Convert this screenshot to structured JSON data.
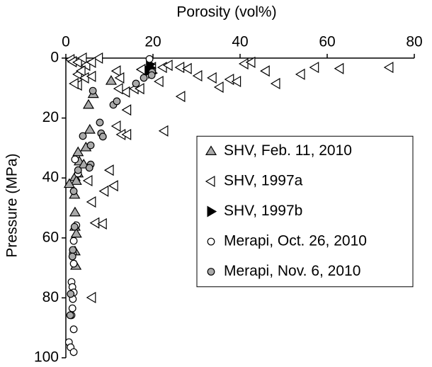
{
  "chart_data": {
    "type": "scatter",
    "xlabel": "Porosity (vol%)",
    "ylabel": "Pressure (MPa)",
    "xlim": [
      0,
      80
    ],
    "xticks": [
      0,
      20,
      40,
      60,
      80
    ],
    "ylim": [
      0,
      100
    ],
    "yticks": [
      0,
      20,
      40,
      60,
      80,
      100
    ],
    "x_axis_position": "top",
    "y_inverted": true,
    "legend": "center right",
    "grid": false,
    "series": [
      {
        "name": "SHV, Feb. 11, 2010",
        "color": "#a9a9a9",
        "marker": "triangle-up",
        "x": [
          10.4,
          6.3,
          5.2,
          5.5,
          4.6,
          2.8,
          3.1,
          4.1,
          2.8,
          2.1,
          2.4,
          0.8,
          2.0,
          2.1,
          2.1,
          2.1,
          2.3,
          2.4
        ],
        "y": [
          7.6,
          12,
          15.6,
          23.9,
          29.8,
          31.4,
          34.5,
          35.5,
          38.5,
          39.7,
          41,
          42,
          45.6,
          51.5,
          56.3,
          64.5,
          69.3,
          58.6
        ]
      },
      {
        "name": "SHV, 1997a",
        "color": "#ffffff",
        "marker": "triangle-left",
        "x": [
          1.1,
          1.6,
          2.8,
          3.9,
          7.6,
          4.7,
          6,
          2.8,
          3.6,
          4.4,
          6,
          2.8,
          2,
          11.7,
          12.5,
          13.8,
          14.1,
          11.7,
          12.8,
          14.1,
          22.6,
          5.2,
          10.1,
          11.1,
          8.9,
          6,
          6.8,
          8.5,
          6,
          17.4,
          19.8,
          22.3,
          23.6,
          26.3,
          28,
          26.5,
          30.4,
          33.7,
          37.7,
          39.3,
          35.3,
          41,
          42.6,
          45.9,
          48.3,
          54,
          57.2,
          62.9,
          74.3,
          21.5,
          15.8,
          12.2,
          17.1
        ],
        "y": [
          0.5,
          1.2,
          1.4,
          0,
          0,
          2.4,
          1.4,
          5.4,
          4.3,
          6.6,
          6.1,
          9,
          8.5,
          4.3,
          6.6,
          11.3,
          17.3,
          22.7,
          25.5,
          25.5,
          24.3,
          40.9,
          37.4,
          42.6,
          44.4,
          48,
          55,
          55.3,
          79.9,
          3.8,
          3.1,
          3.1,
          2.4,
          3.1,
          3.5,
          12.8,
          5.9,
          6.6,
          7.1,
          7.8,
          9.7,
          1.9,
          1.4,
          4.3,
          8.5,
          5.4,
          3.1,
          3.5,
          3.1,
          7.8,
          10.2,
          10.2,
          10.2
        ]
      },
      {
        "name": "SHV, 1997b",
        "color": "#000000",
        "marker": "triangle-right",
        "x": [
          19.3,
          19.5,
          19.0,
          19.8
        ],
        "y": [
          2.1,
          3.3,
          4.3,
          5.0
        ]
      },
      {
        "name": "Merapi, Oct. 26, 2010",
        "color": "#ffffff",
        "marker": "circle",
        "x": [
          19.2,
          2.4,
          1.8,
          1.6,
          1.8,
          1.3,
          1.5,
          1.8,
          1.6,
          1.5,
          1.3,
          1.8,
          0.7,
          1.1,
          1.8,
          2.8,
          2.1
        ],
        "y": [
          0.3,
          55.8,
          61,
          65.2,
          68.6,
          74.7,
          76.4,
          78.2,
          80.4,
          83.5,
          85.8,
          90.5,
          94.8,
          96.5,
          98.1,
          38.5,
          33.8
        ]
      },
      {
        "name": "Merapi, Nov. 6, 2010",
        "color": "#a9a9a9",
        "marker": "circle",
        "x": [
          6.2,
          5.7,
          3.9,
          7.8,
          8.1,
          8.5,
          10.9,
          11.7,
          16.1,
          17.9,
          19.8,
          19.7,
          5.7,
          5.4,
          2.8,
          1.8,
          2,
          1.6,
          1.5,
          1.1,
          1
        ],
        "y": [
          10.9,
          29.1,
          26,
          21.5,
          25.1,
          26.2,
          15.6,
          14.4,
          8.5,
          6.6,
          4.7,
          5.7,
          35.5,
          36.6,
          37.4,
          44.4,
          56.3,
          64,
          66.2,
          78.7,
          85.8
        ]
      }
    ]
  }
}
